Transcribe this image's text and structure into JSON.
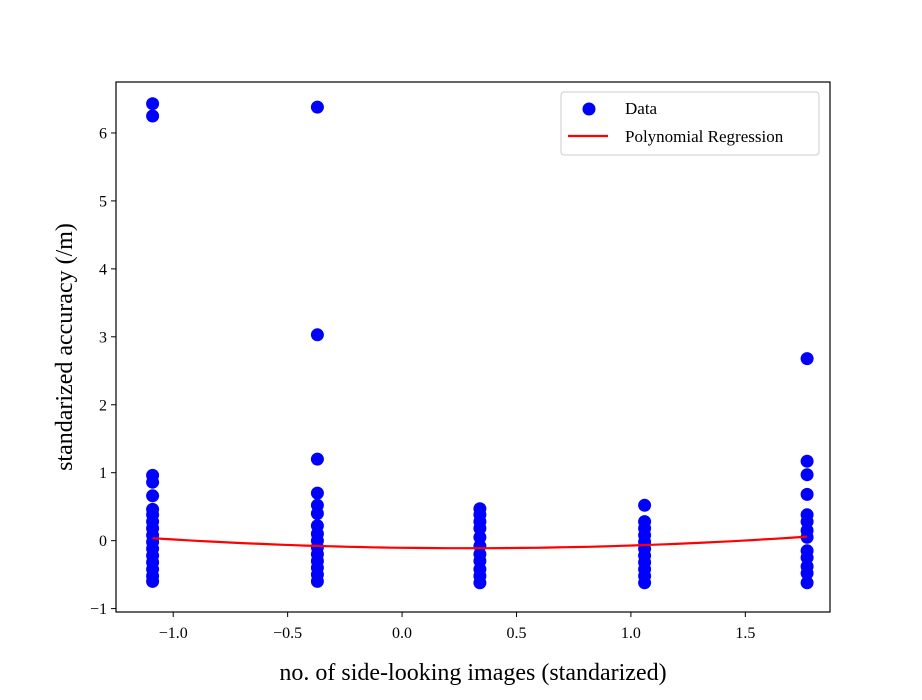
{
  "chart_data": {
    "type": "scatter",
    "title": "",
    "xlabel": "no. of side-looking images (standarized)",
    "ylabel": "standarized accuracy (/m)",
    "xlim": [
      -1.25,
      1.87
    ],
    "ylim": [
      -1.05,
      6.75
    ],
    "xticks": [
      -1.0,
      -0.5,
      0.0,
      0.5,
      1.0,
      1.5
    ],
    "xtick_labels": [
      "−1.0",
      "−0.5",
      "0.0",
      "0.5",
      "1.0",
      "1.5"
    ],
    "yticks": [
      -1,
      0,
      1,
      2,
      3,
      4,
      5,
      6
    ],
    "ytick_labels": [
      "−1",
      "0",
      "1",
      "2",
      "3",
      "4",
      "5",
      "6"
    ],
    "grid": false,
    "legend_position": "top-right",
    "series": [
      {
        "name": "Data",
        "type": "scatter",
        "color": "#0000ff",
        "points": [
          [
            -1.09,
            6.43
          ],
          [
            -1.09,
            6.25
          ],
          [
            -1.09,
            0.96
          ],
          [
            -1.09,
            0.86
          ],
          [
            -1.09,
            0.66
          ],
          [
            -1.09,
            0.46
          ],
          [
            -1.09,
            0.38
          ],
          [
            -1.09,
            0.28
          ],
          [
            -1.09,
            0.18
          ],
          [
            -1.09,
            0.08
          ],
          [
            -1.09,
            -0.02
          ],
          [
            -1.09,
            -0.12
          ],
          [
            -1.09,
            -0.22
          ],
          [
            -1.09,
            -0.32
          ],
          [
            -1.09,
            -0.42
          ],
          [
            -1.09,
            -0.52
          ],
          [
            -1.09,
            -0.6
          ],
          [
            -0.37,
            6.38
          ],
          [
            -0.37,
            3.03
          ],
          [
            -0.37,
            1.2
          ],
          [
            -0.37,
            0.7
          ],
          [
            -0.37,
            0.52
          ],
          [
            -0.37,
            0.4
          ],
          [
            -0.37,
            0.22
          ],
          [
            -0.37,
            0.1
          ],
          [
            -0.37,
            0.0
          ],
          [
            -0.37,
            -0.1
          ],
          [
            -0.37,
            -0.2
          ],
          [
            -0.37,
            -0.3
          ],
          [
            -0.37,
            -0.4
          ],
          [
            -0.37,
            -0.5
          ],
          [
            -0.37,
            -0.6
          ],
          [
            0.34,
            0.47
          ],
          [
            0.34,
            0.38
          ],
          [
            0.34,
            0.28
          ],
          [
            0.34,
            0.18
          ],
          [
            0.34,
            0.05
          ],
          [
            0.34,
            -0.08
          ],
          [
            0.34,
            -0.2
          ],
          [
            0.34,
            -0.3
          ],
          [
            0.34,
            -0.42
          ],
          [
            0.34,
            -0.52
          ],
          [
            0.34,
            -0.62
          ],
          [
            1.06,
            0.52
          ],
          [
            1.06,
            0.28
          ],
          [
            1.06,
            0.18
          ],
          [
            1.06,
            0.08
          ],
          [
            1.06,
            -0.02
          ],
          [
            1.06,
            -0.12
          ],
          [
            1.06,
            -0.22
          ],
          [
            1.06,
            -0.32
          ],
          [
            1.06,
            -0.42
          ],
          [
            1.06,
            -0.52
          ],
          [
            1.06,
            -0.62
          ],
          [
            1.77,
            2.68
          ],
          [
            1.77,
            1.17
          ],
          [
            1.77,
            0.97
          ],
          [
            1.77,
            0.68
          ],
          [
            1.77,
            0.38
          ],
          [
            1.77,
            0.28
          ],
          [
            1.77,
            0.15
          ],
          [
            1.77,
            0.05
          ],
          [
            1.77,
            -0.15
          ],
          [
            1.77,
            -0.25
          ],
          [
            1.77,
            -0.38
          ],
          [
            1.77,
            -0.48
          ],
          [
            1.77,
            -0.62
          ]
        ]
      },
      {
        "name": "Polynomial Regression",
        "type": "line",
        "color": "#ff0000",
        "quadratic_coefficients": {
          "a": 0.0777,
          "b": -0.0448,
          "c": -0.105
        },
        "x_range": [
          -1.09,
          1.77
        ]
      }
    ]
  }
}
